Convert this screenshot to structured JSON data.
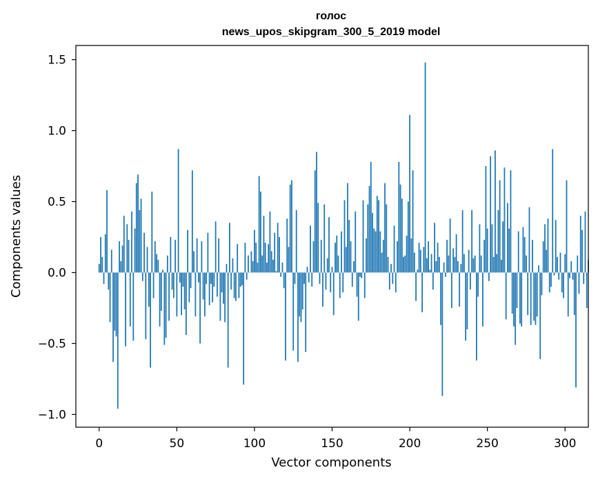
{
  "chart_data": {
    "type": "bar",
    "title": "голос",
    "subtitle": "news_upos_skipgram_300_5_2019 model",
    "xlabel": "Vector components",
    "ylabel": "Components values",
    "xlim": [
      -15,
      315
    ],
    "ylim": [
      -1.09,
      1.6
    ],
    "xticks": [
      0,
      50,
      100,
      150,
      200,
      250,
      300
    ],
    "xtick_labels": [
      "0",
      "50",
      "100",
      "150",
      "200",
      "250",
      "300"
    ],
    "yticks": [
      -1.0,
      -0.5,
      0.0,
      0.5,
      1.0,
      1.5
    ],
    "ytick_labels": [
      "−1.0",
      "−0.5",
      "0.0",
      "0.5",
      "1.0",
      "1.5"
    ],
    "bar_color": "#1f77b4",
    "grid": false,
    "values": [
      0.06,
      0.25,
      0.11,
      -0.08,
      0.27,
      0.58,
      -0.12,
      -0.35,
      0.16,
      -0.63,
      -0.41,
      -0.45,
      -0.96,
      0.22,
      0.08,
      0.19,
      0.4,
      -0.52,
      0.34,
      0.23,
      -0.38,
      0.43,
      -0.48,
      0.31,
      0.63,
      0.69,
      0.44,
      0.52,
      -0.06,
      0.28,
      -0.47,
      0.18,
      -0.24,
      -0.67,
      0.57,
      -0.18,
      0.22,
      0.13,
      0.09,
      -0.38,
      -0.27,
      0.02,
      -0.51,
      -0.46,
      0.12,
      -0.34,
      0.25,
      -0.12,
      -0.18,
      0.23,
      -0.31,
      0.87,
      -0.07,
      -0.3,
      -0.1,
      -0.26,
      -0.44,
      0.3,
      -0.21,
      -0.11,
      0.72,
      0.15,
      -0.31,
      0.24,
      -0.07,
      -0.5,
      0.22,
      -0.19,
      -0.31,
      -0.08,
      0.28,
      -0.23,
      -0.08,
      -0.21,
      -0.1,
      0.36,
      -0.17,
      0.24,
      -0.34,
      -0.14,
      -0.22,
      -0.35,
      0.06,
      -0.67,
      0.35,
      -0.12,
      0.1,
      -0.18,
      -0.2,
      0.2,
      -0.18,
      -0.1,
      -0.09,
      -0.79,
      0.21,
      -0.05,
      0.12,
      0.0,
      0.15,
      0.08,
      0.3,
      0.21,
      0.07,
      0.68,
      0.57,
      0.12,
      0.4,
      0.21,
      0.07,
      0.2,
      0.43,
      0.15,
      0.09,
      0.28,
      0.01,
      0.35,
      0.25,
      -0.03,
      0.07,
      -0.11,
      -0.62,
      0.38,
      0.18,
      0.62,
      0.65,
      -0.55,
      -0.08,
      0.44,
      -0.63,
      -0.31,
      -0.35,
      -0.26,
      -0.08,
      -0.56,
      0.04,
      -0.07,
      0.33,
      -0.1,
      0.22,
      0.72,
      0.85,
      0.49,
      -0.08,
      0.23,
      -0.24,
      0.48,
      -0.12,
      0.1,
      0.39,
      -0.14,
      0.04,
      -0.3,
      0.21,
      0.26,
      0.12,
      -0.18,
      0.29,
      -0.14,
      0.51,
      0.18,
      0.63,
      0.37,
      0.22,
      -0.1,
      0.08,
      0.43,
      -0.17,
      -0.34,
      -0.03,
      -0.04,
      0.51,
      -0.18,
      0.24,
      0.48,
      0.61,
      0.78,
      0.42,
      0.31,
      0.29,
      0.54,
      0.51,
      0.29,
      0.14,
      0.23,
      0.63,
      0.48,
      0.11,
      -0.12,
      0.06,
      -0.08,
      0.33,
      -0.14,
      0.22,
      0.78,
      0.62,
      0.52,
      0.11,
      0.12,
      0.26,
      0.5,
      1.11,
      0.24,
      0.72,
      0.14,
      -0.2,
      0.02,
      0.21,
      0.16,
      -0.28,
      0.18,
      1.48,
      0.1,
      0.22,
      0.02,
      0.13,
      -0.12,
      0.35,
      0.08,
      0.21,
      0.11,
      -0.37,
      -0.87,
      0.07,
      -0.03,
      0.23,
      0.12,
      0.38,
      -0.25,
      0.17,
      0.11,
      0.27,
      0.08,
      -0.24,
      0.06,
      0.44,
      0.13,
      -0.48,
      -0.4,
      0.16,
      -0.12,
      0.44,
      0.1,
      0.12,
      -0.62,
      -0.17,
      0.34,
      0.12,
      -0.38,
      0.23,
      0.75,
      0.31,
      -0.06,
      0.82,
      0.34,
      0.11,
      0.86,
      0.13,
      0.44,
      0.65,
      0.09,
      0.36,
      0.74,
      -0.33,
      0.49,
      0.31,
      0.72,
      -0.29,
      -0.38,
      -0.51,
      -0.25,
      0.29,
      -0.36,
      -0.38,
      0.32,
      0.25,
      0.12,
      -0.3,
      0.46,
      -0.37,
      0.23,
      -0.34,
      -0.37,
      -0.31,
      0.05,
      -0.61,
      -0.16,
      0.22,
      0.34,
      0.16,
      0.38,
      -0.14,
      -0.1,
      0.87,
      -0.02,
      0.37,
      0.11,
      -0.05,
      0.14,
      -0.14,
      -0.18,
      0.13,
      0.65,
      -0.31,
      -0.04,
      0.08,
      -0.05,
      -0.3,
      -0.81,
      0.12,
      -0.15,
      0.4,
      0.3,
      -0.08,
      0.43,
      -0.25,
      0.09
    ]
  }
}
